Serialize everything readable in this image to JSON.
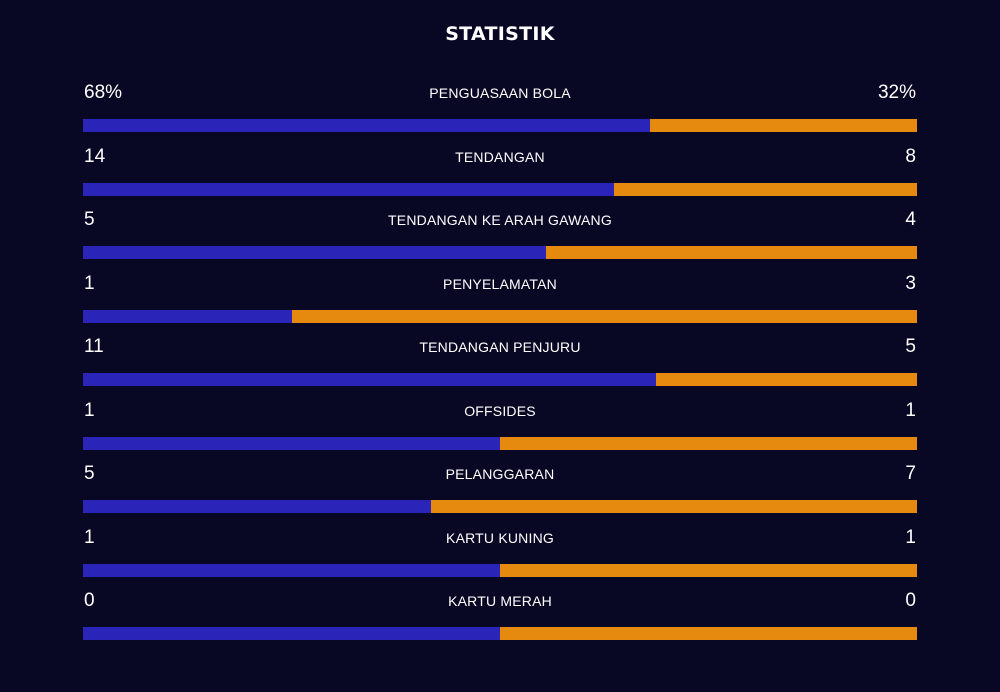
{
  "title": "STATISTIK",
  "colors": {
    "background": "#090824",
    "home_bar": "#2a25b8",
    "away_bar": "#e5890f"
  },
  "stats": [
    {
      "label": "PENGUASAAN BOLA",
      "home": "68%",
      "away": "32%",
      "home_value": 68,
      "away_value": 32
    },
    {
      "label": "TENDANGAN",
      "home": "14",
      "away": "8",
      "home_value": 14,
      "away_value": 8
    },
    {
      "label": "TENDANGAN KE ARAH GAWANG",
      "home": "5",
      "away": "4",
      "home_value": 5,
      "away_value": 4
    },
    {
      "label": "PENYELAMATAN",
      "home": "1",
      "away": "3",
      "home_value": 1,
      "away_value": 3
    },
    {
      "label": "TENDANGAN PENJURU",
      "home": "11",
      "away": "5",
      "home_value": 11,
      "away_value": 5
    },
    {
      "label": "OFFSIDES",
      "home": "1",
      "away": "1",
      "home_value": 1,
      "away_value": 1
    },
    {
      "label": "PELANGGARAN",
      "home": "5",
      "away": "7",
      "home_value": 5,
      "away_value": 7
    },
    {
      "label": "KARTU KUNING",
      "home": "1",
      "away": "1",
      "home_value": 1,
      "away_value": 1
    },
    {
      "label": "KARTU MERAH",
      "home": "0",
      "away": "0",
      "home_value": 0,
      "away_value": 0
    }
  ]
}
